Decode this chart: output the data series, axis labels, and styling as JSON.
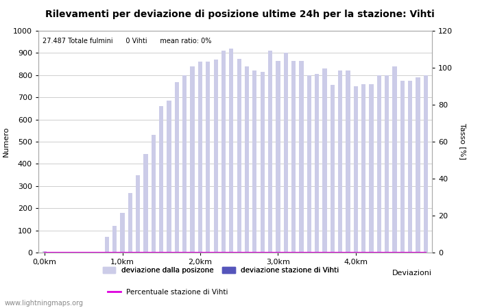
{
  "title": "Rilevamenti per deviazione di posizione ultime 24h per la stazione: Vihti",
  "subtitle": "27.487 Totale fulmini      0 Vihti      mean ratio: 0%",
  "xlabel": "Deviazioni",
  "ylabel_left": "Numero",
  "ylabel_right": "Tasso [%]",
  "watermark": "www.lightningmaps.org",
  "ylim_left": [
    0,
    1000
  ],
  "ylim_right": [
    0,
    120
  ],
  "yticks_left": [
    0,
    100,
    200,
    300,
    400,
    500,
    600,
    700,
    800,
    900,
    1000
  ],
  "yticks_right": [
    0,
    20,
    40,
    60,
    80,
    100,
    120
  ],
  "xtick_labels": [
    "0,0km",
    "1,0km",
    "2,0km",
    "3,0km",
    "4,0km"
  ],
  "xtick_positions": [
    0,
    10,
    20,
    30,
    40
  ],
  "bar_color_light": "#cccce8",
  "bar_color_dark": "#5555bb",
  "line_color": "#dd00dd",
  "bar_values": [
    5,
    2,
    1,
    1,
    2,
    3,
    1,
    1,
    70,
    120,
    180,
    270,
    350,
    445,
    530,
    660,
    685,
    770,
    800,
    840,
    860,
    860,
    870,
    910,
    920,
    875,
    840,
    820,
    815,
    910,
    865,
    900,
    865,
    865,
    800,
    805,
    830,
    755,
    820,
    820,
    750,
    760,
    760,
    800,
    800,
    840,
    775,
    775,
    790,
    800
  ],
  "bar_vihti_values": [
    0,
    0,
    0,
    0,
    0,
    0,
    0,
    0,
    0,
    0,
    0,
    0,
    0,
    0,
    0,
    0,
    0,
    0,
    0,
    0,
    0,
    0,
    0,
    0,
    0,
    0,
    0,
    0,
    0,
    0,
    0,
    0,
    0,
    0,
    0,
    0,
    0,
    0,
    0,
    0,
    0,
    0,
    0,
    0,
    0,
    0,
    0,
    0,
    0,
    0
  ],
  "n_bars": 50,
  "legend_items": [
    {
      "label": "deviazione dalla posizone",
      "color": "#cccce8",
      "type": "bar"
    },
    {
      "label": "deviazione stazione di Vihti",
      "color": "#5555bb",
      "type": "bar"
    },
    {
      "label": "Percentuale stazione di Vihti",
      "color": "#dd00dd",
      "type": "line"
    }
  ],
  "bg_color": "#ffffff",
  "grid_color": "#bbbbbb",
  "title_fontsize": 10,
  "axis_fontsize": 8,
  "tick_fontsize": 8
}
